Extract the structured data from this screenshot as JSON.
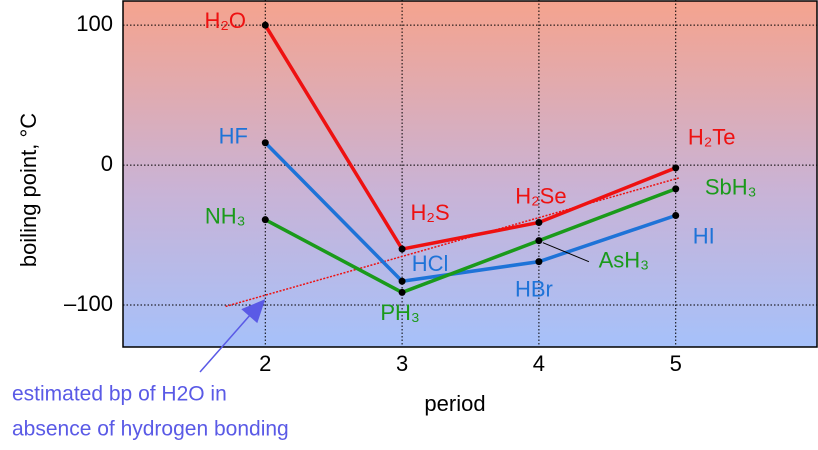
{
  "chart_data": {
    "type": "line",
    "x_label": "period",
    "y_label": "boiling point, °C",
    "x": [
      2,
      3,
      4,
      5
    ],
    "series": [
      {
        "color": "#ee1111",
        "values": [
          100,
          -60,
          -41,
          -2
        ],
        "point_labels": [
          "H₂O",
          "H₂S",
          "H₂Se",
          "H₂Te"
        ]
      },
      {
        "color": "#1e73d8",
        "values": [
          16,
          -83,
          -69,
          -36
        ],
        "point_labels": [
          "HF",
          "HCl",
          "HBr",
          "HI"
        ]
      },
      {
        "color": "#1a9a1a",
        "values": [
          -39,
          -91,
          -54,
          -17
        ],
        "point_labels": [
          "NH₃",
          "PH₃",
          "AsH₃",
          "SbH₃"
        ]
      }
    ],
    "estimate": {
      "x": [
        1.71,
        5.03
      ],
      "values": [
        -101,
        -9
      ],
      "color": "#ee1111"
    },
    "annotation": [
      "estimated bp of H2O in",
      "absence of hydrogen bonding"
    ],
    "annotation_color": "#5a5ae6",
    "xlim": [
      0.96,
      6.04
    ],
    "ylim": [
      -130,
      118
    ],
    "xticks": [
      2,
      3,
      4,
      5
    ],
    "yticks": [
      {
        "value": -100,
        "label": "–100"
      },
      0,
      100
    ],
    "grid": true
  }
}
